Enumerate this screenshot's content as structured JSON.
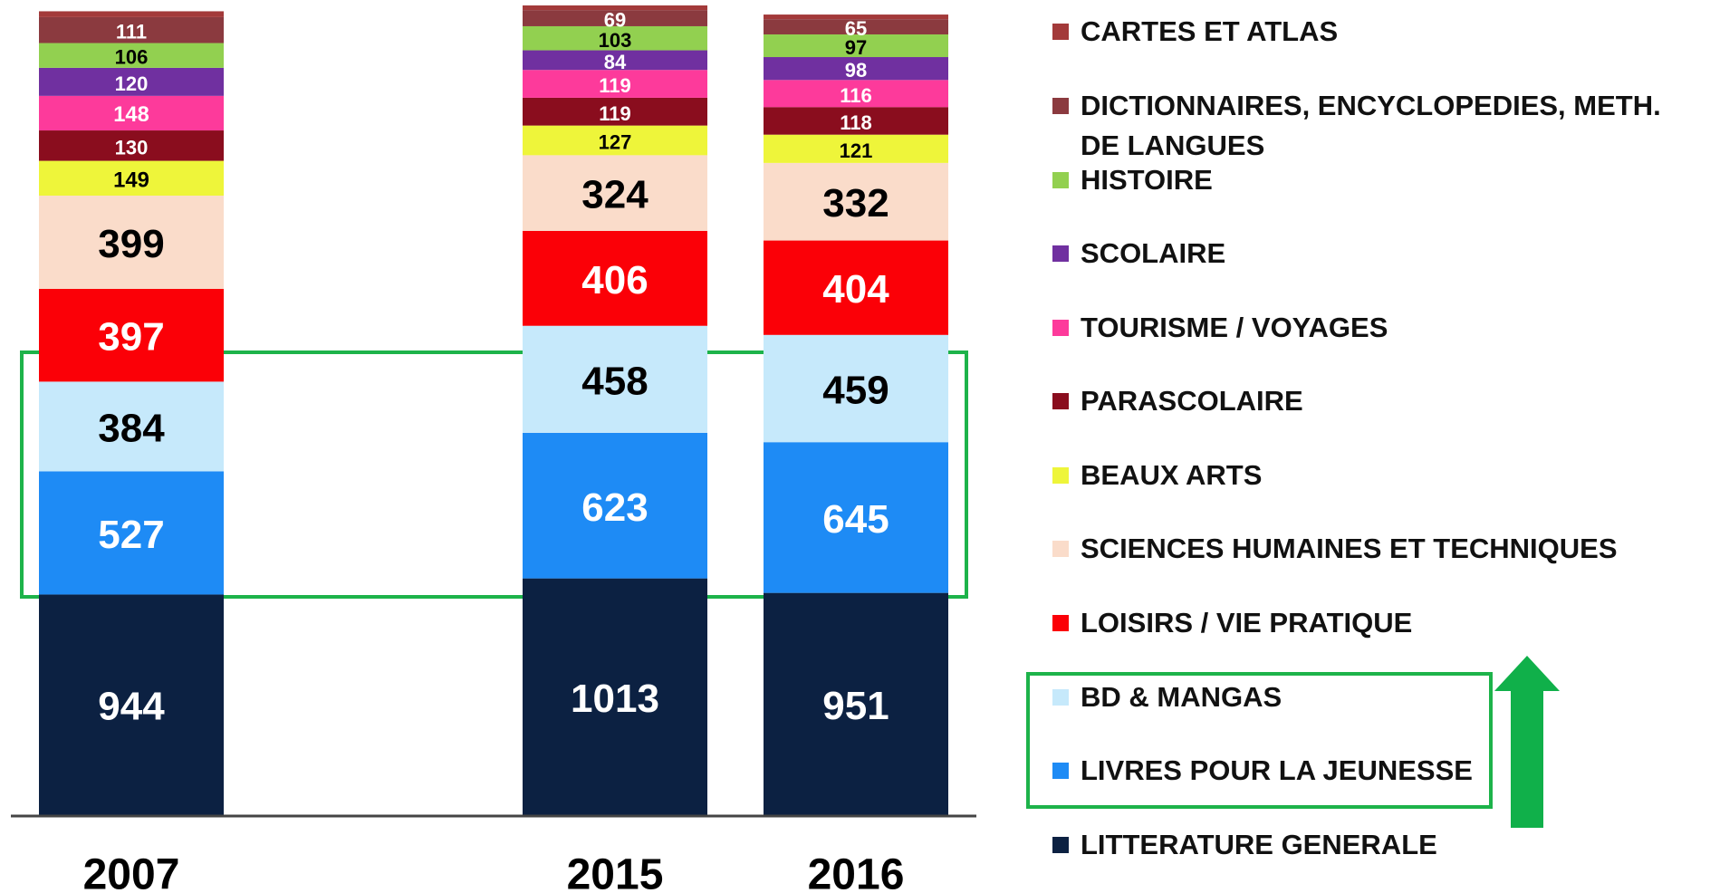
{
  "chart_data": {
    "type": "stacked_bar",
    "categories": [
      "2007",
      "2015",
      "2016"
    ],
    "series": [
      {
        "name": "LITTERATURE GENERALE",
        "color": "#0c2142",
        "values": [
          944,
          1013,
          951
        ]
      },
      {
        "name": "LIVRES POUR LA JEUNESSE",
        "color": "#1e8bf5",
        "values": [
          527,
          623,
          645
        ]
      },
      {
        "name": "BD & MANGAS",
        "color": "#c6e9fb",
        "values": [
          384,
          458,
          459
        ]
      },
      {
        "name": "LOISIRS / VIE PRATIQUE",
        "color": "#fb0007",
        "values": [
          397,
          406,
          404
        ]
      },
      {
        "name": "SCIENCES HUMAINES ET TECHNIQUES",
        "color": "#fadcca",
        "values": [
          399,
          324,
          332
        ]
      },
      {
        "name": "BEAUX ARTS",
        "color": "#eef53a",
        "values": [
          149,
          127,
          121
        ]
      },
      {
        "name": "PARASCOLAIRE",
        "color": "#8a0d1e",
        "values": [
          130,
          119,
          118
        ]
      },
      {
        "name": "TOURISME / VOYAGES",
        "color": "#fd3a9b",
        "values": [
          148,
          119,
          116
        ]
      },
      {
        "name": "SCOLAIRE",
        "color": "#7030a0",
        "values": [
          120,
          84,
          98
        ]
      },
      {
        "name": "HISTOIRE",
        "color": "#92d050",
        "values": [
          106,
          103,
          97
        ]
      },
      {
        "name": "DICTIONNAIRES, ENCYCLOPEDIES, METH. DE LANGUES",
        "color": "#8b3a3f",
        "values": [
          111,
          69,
          65
        ]
      },
      {
        "name": "CARTES ET ATLAS",
        "color": "#a33a3a",
        "values": [
          25,
          20,
          20
        ],
        "value_labels": [
          null,
          null,
          null
        ]
      }
    ]
  }
}
